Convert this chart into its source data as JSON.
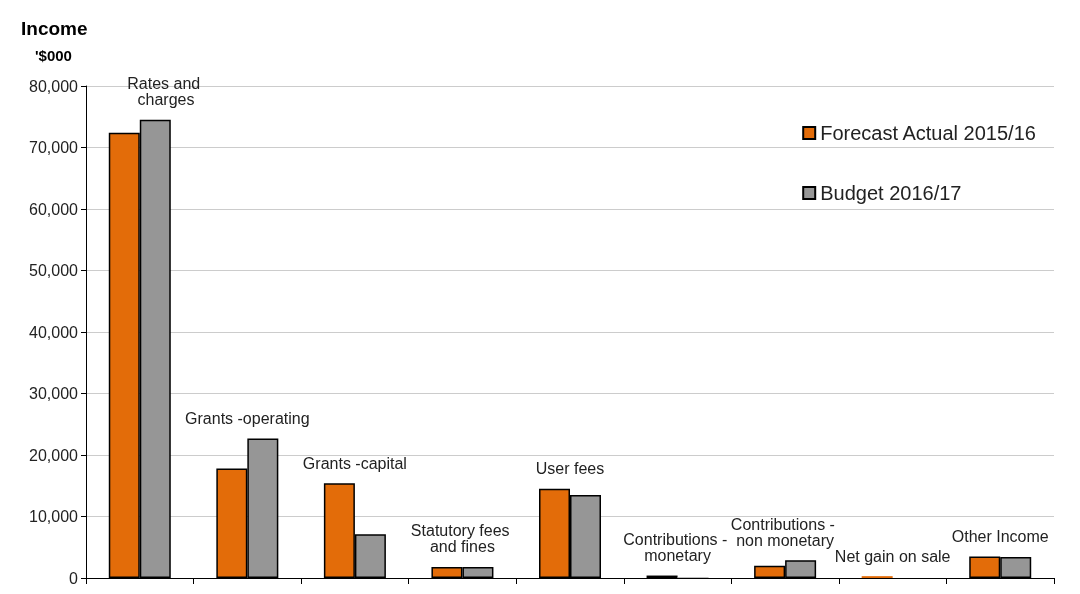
{
  "chart_data": {
    "type": "bar",
    "title": "Income",
    "ylabel": "'$000",
    "categories": [
      "Rates and charges",
      "Grants -operating",
      "Grants -capital",
      "Statutory fees and fines",
      "User fees",
      "Contributions - monetary",
      "Contributions - non monetary",
      "Net gain on sale",
      "Other Income"
    ],
    "series": [
      {
        "name": "Forecast Actual 2015/16",
        "color": "#e36c09",
        "values": [
          72400,
          17800,
          15400,
          1800,
          14500,
          400,
          2000,
          300,
          3500
        ]
      },
      {
        "name": "Budget 2016/17",
        "color": "#969696",
        "values": [
          74500,
          22700,
          7100,
          1800,
          13500,
          100,
          2900,
          null,
          3400
        ]
      }
    ],
    "ylim": [
      0,
      80000
    ],
    "yticks": [
      {
        "value": 0,
        "label": "0"
      },
      {
        "value": 10000,
        "label": "10,000"
      },
      {
        "value": 20000,
        "label": "20,000"
      },
      {
        "value": 30000,
        "label": "30,000"
      },
      {
        "value": 40000,
        "label": "40,000"
      },
      {
        "value": 50000,
        "label": "50,000"
      },
      {
        "value": 60000,
        "label": "60,000"
      },
      {
        "value": 70000,
        "label": "70,000"
      },
      {
        "value": 80000,
        "label": "80,000"
      }
    ],
    "grid": "y",
    "legend": "top right"
  }
}
